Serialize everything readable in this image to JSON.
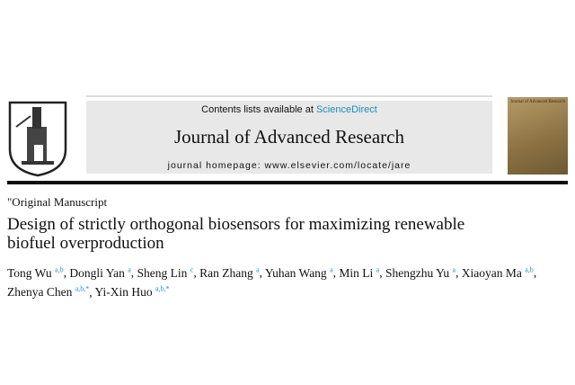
{
  "header": {
    "contents_prefix": "Contents lists available at ",
    "contents_link": "ScienceDirect",
    "journal_title": "Journal of Advanced Research",
    "homepage": "journal homepage: www.elsevier.com/locate/jare",
    "cover_title": "Journal of Advanced Research"
  },
  "article": {
    "type": "\"Original Manuscript",
    "title": "Design of strictly orthogonal biosensors for maximizing renewable biofuel overproduction",
    "authors": [
      {
        "name": "Tong Wu",
        "aff": "a,b"
      },
      {
        "name": "Dongli Yan",
        "aff": "a"
      },
      {
        "name": "Sheng Lin",
        "aff": "c"
      },
      {
        "name": "Ran Zhang",
        "aff": "a"
      },
      {
        "name": "Yuhan Wang",
        "aff": "a"
      },
      {
        "name": "Min Li",
        "aff": "a"
      },
      {
        "name": "Shengzhu Yu",
        "aff": "a"
      },
      {
        "name": "Xiaoyan Ma",
        "aff": "a,b"
      },
      {
        "name": "Zhenya Chen",
        "aff": "a,b,*"
      },
      {
        "name": "Yi-Xin Huo",
        "aff": "a,b,*"
      }
    ]
  },
  "colors": {
    "link": "#1a8fbf",
    "banner": "#e8e8e8"
  }
}
